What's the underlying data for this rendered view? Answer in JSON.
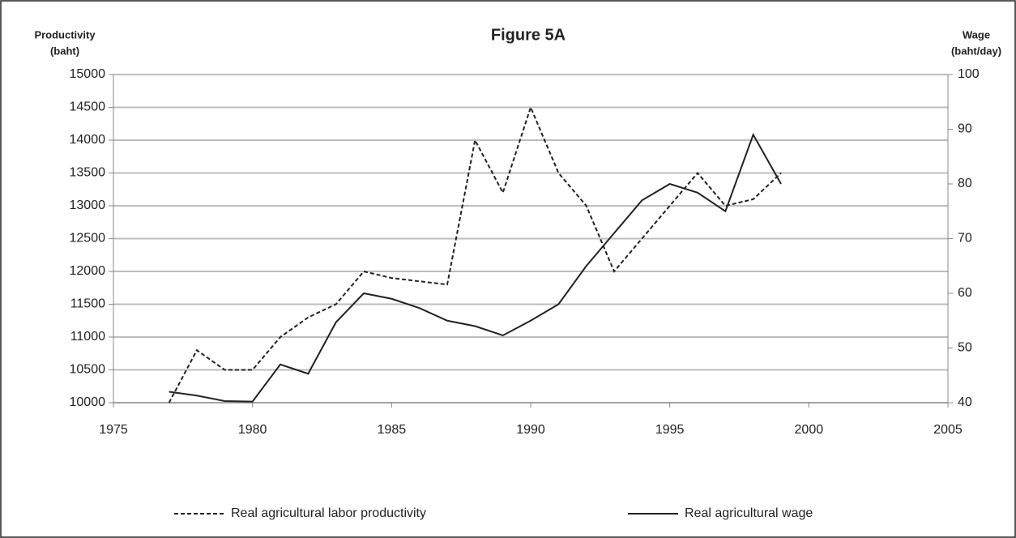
{
  "chart_data": {
    "type": "line",
    "title": "Figure 5A",
    "y_label": [
      "Productivity",
      "(baht)"
    ],
    "y2_label": [
      "Wage",
      "(baht/day)"
    ],
    "x": [
      1977,
      1978,
      1979,
      1980,
      1981,
      1982,
      1983,
      1984,
      1985,
      1986,
      1987,
      1988,
      1989,
      1990,
      1991,
      1992,
      1993,
      1994,
      1995,
      1996,
      1997,
      1998,
      1999
    ],
    "series": [
      {
        "name": "Real agricultural labor productivity",
        "color": "#222222",
        "dash": true,
        "axis": "y",
        "values": [
          10000,
          10800,
          10500,
          10500,
          11000,
          11300,
          11500,
          12000,
          11900,
          11850,
          11800,
          14000,
          13200,
          14500,
          13500,
          13000,
          12000,
          12500,
          13000,
          13500,
          13000,
          13100,
          13500
        ]
      },
      {
        "name": "Real agricultural wage",
        "color": "#222222",
        "dash": false,
        "axis": "y2",
        "values": [
          42,
          41.3,
          40.3,
          40.2,
          47,
          45.3,
          54.7,
          60,
          59,
          57.3,
          55,
          54,
          52.3,
          55,
          58,
          65,
          71,
          77,
          80,
          78.4,
          75,
          89,
          80
        ]
      }
    ],
    "xlim": [
      1975,
      2005
    ],
    "xticks": [
      1975,
      1980,
      1985,
      1990,
      1995,
      2000,
      2005
    ],
    "ylim": [
      10000,
      15000
    ],
    "yticks": [
      10000,
      10500,
      11000,
      11500,
      12000,
      12500,
      13000,
      13500,
      14000,
      14500,
      15000
    ],
    "y2lim": [
      40,
      100
    ],
    "y2ticks": [
      40,
      50,
      60,
      70,
      80,
      90,
      100
    ],
    "grid": true,
    "legend": "bottom"
  }
}
